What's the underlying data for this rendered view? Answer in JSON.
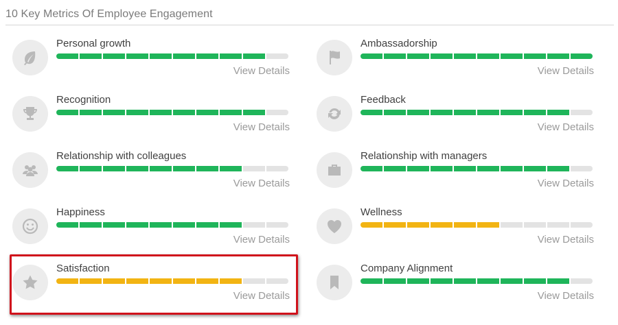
{
  "title": "10 Key Metrics Of Employee Engagement",
  "view_details_label": "View Details",
  "colors": {
    "green": "#1fb55a",
    "yellow": "#f2b413",
    "empty": "#e3e3e3",
    "highlight": "#d0121b"
  },
  "metrics": [
    {
      "label": "Personal growth",
      "icon": "leaf-icon",
      "filled": 9,
      "total": 10,
      "color": "green"
    },
    {
      "label": "Ambassadorship",
      "icon": "flag-icon",
      "filled": 10,
      "total": 10,
      "color": "green"
    },
    {
      "label": "Recognition",
      "icon": "trophy-icon",
      "filled": 9,
      "total": 10,
      "color": "green"
    },
    {
      "label": "Feedback",
      "icon": "refresh-icon",
      "filled": 9,
      "total": 10,
      "color": "green"
    },
    {
      "label": "Relationship with colleagues",
      "icon": "group-icon",
      "filled": 8,
      "total": 10,
      "color": "green"
    },
    {
      "label": "Relationship with managers",
      "icon": "briefcase-icon",
      "filled": 9,
      "total": 10,
      "color": "green"
    },
    {
      "label": "Happiness",
      "icon": "smiley-icon",
      "filled": 8,
      "total": 10,
      "color": "green"
    },
    {
      "label": "Wellness",
      "icon": "heart-icon",
      "filled": 6,
      "total": 10,
      "color": "yellow"
    },
    {
      "label": "Satisfaction",
      "icon": "star-icon",
      "filled": 8,
      "total": 10,
      "color": "yellow",
      "highlighted": true
    },
    {
      "label": "Company Alignment",
      "icon": "bookmark-icon",
      "filled": 9,
      "total": 10,
      "color": "green"
    }
  ]
}
